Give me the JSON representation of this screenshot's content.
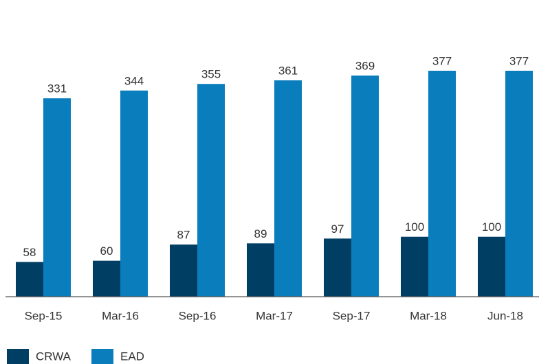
{
  "chart_data": {
    "type": "bar",
    "categories": [
      "Sep-15",
      "Mar-16",
      "Sep-16",
      "Mar-17",
      "Sep-17",
      "Mar-18",
      "Jun-18"
    ],
    "series": [
      {
        "name": "CRWA",
        "color": "#003f63",
        "values": [
          58,
          60,
          87,
          89,
          97,
          100,
          100
        ]
      },
      {
        "name": "EAD",
        "color": "#0a7dbd",
        "values": [
          331,
          344,
          355,
          361,
          369,
          377,
          377
        ]
      }
    ],
    "ylim": [
      0,
      450
    ],
    "legend": "bottom-left"
  }
}
